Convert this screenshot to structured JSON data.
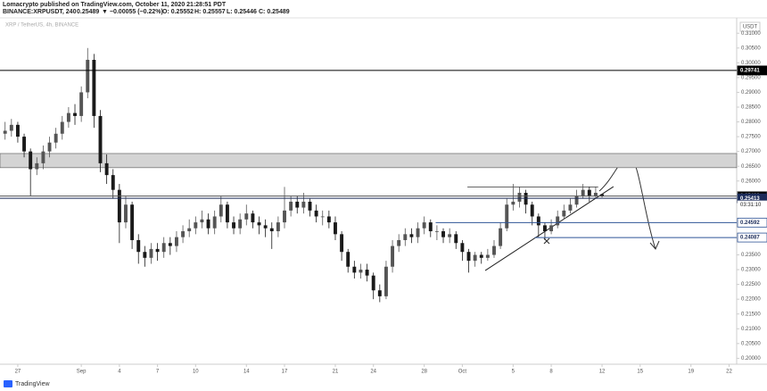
{
  "header": {
    "published": "Lomacrypto published on TradingView.com, October 11, 2020 21:28:51 PDT",
    "symbol": "BINANCE:XRPUSDT, 240",
    "last": "0.25489",
    "change": "▼ −0.00055 (−0.22%)",
    "ohlc": [
      "O: 0.25552",
      "H: 0.25557",
      "L: 0.25446",
      "C: 0.25489"
    ]
  },
  "currency": "USDT",
  "countdown": "03:31:10",
  "footer": "TradingView",
  "chart_data": {
    "type": "candlestick",
    "title": "XRP / TetherUS, 4h, BINANCE",
    "up_color": "#555555",
    "down_color": "#1a1a1a",
    "xlim": [
      -1.4,
      56.6
    ],
    "ylim": [
      0.198,
      0.3146
    ],
    "xticks": [
      {
        "value": 0,
        "label": "27"
      },
      {
        "value": 5,
        "label": "Sep"
      },
      {
        "value": 8,
        "label": "4"
      },
      {
        "value": 11,
        "label": "7"
      },
      {
        "value": 14,
        "label": "10"
      },
      {
        "value": 18,
        "label": "14"
      },
      {
        "value": 21,
        "label": "17"
      },
      {
        "value": 25,
        "label": "21"
      },
      {
        "value": 28,
        "label": "24"
      },
      {
        "value": 32,
        "label": "28"
      },
      {
        "value": 35,
        "label": "Oct"
      },
      {
        "value": 39,
        "label": "5"
      },
      {
        "value": 42,
        "label": "8"
      },
      {
        "value": 46,
        "label": "12"
      },
      {
        "value": 49,
        "label": "15"
      },
      {
        "value": 53,
        "label": "19"
      },
      {
        "value": 56,
        "label": "22"
      }
    ],
    "yticks": [
      {
        "value": 0.31,
        "label": "0.31000"
      },
      {
        "value": 0.305,
        "label": "0.30500"
      },
      {
        "value": 0.3,
        "label": "0.30000"
      },
      {
        "value": 0.295,
        "label": "0.29500"
      },
      {
        "value": 0.29,
        "label": "0.29000"
      },
      {
        "value": 0.285,
        "label": "0.28500"
      },
      {
        "value": 0.28,
        "label": "0.28000"
      },
      {
        "value": 0.275,
        "label": "0.27500"
      },
      {
        "value": 0.27,
        "label": "0.27000"
      },
      {
        "value": 0.265,
        "label": "0.26500"
      },
      {
        "value": 0.26,
        "label": "0.26000"
      },
      {
        "value": 0.235,
        "label": "0.23500"
      },
      {
        "value": 0.23,
        "label": "0.23000"
      },
      {
        "value": 0.225,
        "label": "0.22500"
      },
      {
        "value": 0.22,
        "label": "0.22000"
      },
      {
        "value": 0.215,
        "label": "0.21500"
      },
      {
        "value": 0.21,
        "label": "0.21000"
      },
      {
        "value": 0.205,
        "label": "0.20500"
      },
      {
        "value": 0.2,
        "label": "0.20000"
      }
    ],
    "x": [
      -1,
      -0.5,
      0,
      0.5,
      1,
      1.5,
      2,
      2.5,
      3,
      3.5,
      4,
      4.5,
      5,
      5.5,
      6,
      6.5,
      7,
      7.5,
      8,
      8.5,
      9,
      9.5,
      10,
      10.5,
      11,
      11.5,
      12,
      12.5,
      13,
      13.5,
      14,
      14.5,
      15,
      15.5,
      16,
      16.5,
      17,
      17.5,
      18,
      18.5,
      19,
      19.5,
      20,
      20.5,
      21,
      21.5,
      22,
      22.5,
      23,
      23.5,
      24,
      24.5,
      25,
      25.5,
      26,
      26.5,
      27,
      27.5,
      28,
      28.5,
      29,
      29.5,
      30,
      30.5,
      31,
      31.5,
      32,
      32.5,
      33,
      33.5,
      34,
      34.5,
      35,
      35.5,
      36,
      36.5,
      37,
      37.5,
      38,
      38.5,
      39,
      39.5,
      40,
      40.5,
      41,
      41.5,
      42,
      42.5,
      43,
      43.5,
      44,
      44.5,
      45,
      45.5,
      46
    ],
    "open": [
      0.276,
      0.277,
      0.279,
      0.275,
      0.27,
      0.264,
      0.266,
      0.27,
      0.273,
      0.276,
      0.28,
      0.283,
      0.282,
      0.29,
      0.301,
      0.282,
      0.266,
      0.262,
      0.257,
      0.246,
      0.252,
      0.24,
      0.236,
      0.234,
      0.237,
      0.236,
      0.239,
      0.238,
      0.241,
      0.243,
      0.244,
      0.246,
      0.247,
      0.244,
      0.248,
      0.252,
      0.246,
      0.244,
      0.247,
      0.249,
      0.246,
      0.245,
      0.244,
      0.243,
      0.246,
      0.25,
      0.253,
      0.251,
      0.253,
      0.25,
      0.248,
      0.248,
      0.246,
      0.242,
      0.236,
      0.231,
      0.229,
      0.23,
      0.228,
      0.223,
      0.221,
      0.231,
      0.238,
      0.24,
      0.242,
      0.241,
      0.244,
      0.246,
      0.243,
      0.243,
      0.241,
      0.242,
      0.239,
      0.236,
      0.233,
      0.235,
      0.234,
      0.235,
      0.238,
      0.244,
      0.252,
      0.253,
      0.256,
      0.252,
      0.248,
      0.245,
      0.243,
      0.245,
      0.248,
      0.25,
      0.252,
      0.255,
      0.257,
      0.255,
      0.25552
    ],
    "high": [
      0.28,
      0.281,
      0.28,
      0.276,
      0.271,
      0.268,
      0.272,
      0.275,
      0.278,
      0.282,
      0.285,
      0.286,
      0.292,
      0.305,
      0.303,
      0.284,
      0.269,
      0.264,
      0.259,
      0.255,
      0.253,
      0.242,
      0.238,
      0.239,
      0.239,
      0.241,
      0.241,
      0.243,
      0.245,
      0.247,
      0.248,
      0.25,
      0.249,
      0.25,
      0.255,
      0.253,
      0.248,
      0.249,
      0.252,
      0.25,
      0.248,
      0.247,
      0.246,
      0.248,
      0.258,
      0.255,
      0.255,
      0.256,
      0.254,
      0.252,
      0.25,
      0.25,
      0.248,
      0.243,
      0.237,
      0.233,
      0.232,
      0.232,
      0.229,
      0.225,
      0.233,
      0.24,
      0.242,
      0.244,
      0.244,
      0.246,
      0.248,
      0.247,
      0.245,
      0.244,
      0.244,
      0.243,
      0.24,
      0.237,
      0.236,
      0.236,
      0.237,
      0.24,
      0.246,
      0.254,
      0.259,
      0.258,
      0.257,
      0.253,
      0.249,
      0.246,
      0.247,
      0.25,
      0.252,
      0.254,
      0.257,
      0.259,
      0.258,
      0.258,
      0.25557
    ],
    "low": [
      0.274,
      0.275,
      0.273,
      0.268,
      0.255,
      0.262,
      0.264,
      0.268,
      0.271,
      0.274,
      0.278,
      0.279,
      0.28,
      0.288,
      0.278,
      0.263,
      0.259,
      0.254,
      0.239,
      0.244,
      0.237,
      0.232,
      0.231,
      0.232,
      0.233,
      0.234,
      0.235,
      0.236,
      0.239,
      0.241,
      0.242,
      0.244,
      0.242,
      0.242,
      0.246,
      0.244,
      0.242,
      0.242,
      0.245,
      0.244,
      0.242,
      0.241,
      0.237,
      0.241,
      0.244,
      0.248,
      0.249,
      0.249,
      0.248,
      0.246,
      0.245,
      0.244,
      0.24,
      0.233,
      0.229,
      0.227,
      0.227,
      0.226,
      0.22,
      0.219,
      0.22,
      0.229,
      0.236,
      0.238,
      0.239,
      0.239,
      0.242,
      0.241,
      0.24,
      0.239,
      0.239,
      0.237,
      0.233,
      0.229,
      0.231,
      0.232,
      0.233,
      0.234,
      0.237,
      0.243,
      0.25,
      0.251,
      0.249,
      0.245,
      0.241,
      0.24,
      0.242,
      0.244,
      0.247,
      0.249,
      0.251,
      0.254,
      0.253,
      0.254,
      0.25446
    ],
    "close": [
      0.277,
      0.279,
      0.275,
      0.27,
      0.264,
      0.266,
      0.27,
      0.273,
      0.276,
      0.28,
      0.283,
      0.282,
      0.29,
      0.301,
      0.282,
      0.266,
      0.262,
      0.257,
      0.246,
      0.252,
      0.24,
      0.236,
      0.234,
      0.237,
      0.236,
      0.239,
      0.238,
      0.241,
      0.243,
      0.244,
      0.246,
      0.247,
      0.244,
      0.248,
      0.252,
      0.246,
      0.244,
      0.247,
      0.249,
      0.246,
      0.245,
      0.244,
      0.243,
      0.246,
      0.25,
      0.253,
      0.251,
      0.253,
      0.25,
      0.248,
      0.248,
      0.246,
      0.242,
      0.236,
      0.231,
      0.229,
      0.23,
      0.228,
      0.223,
      0.221,
      0.231,
      0.238,
      0.24,
      0.242,
      0.241,
      0.244,
      0.246,
      0.243,
      0.243,
      0.241,
      0.242,
      0.239,
      0.236,
      0.233,
      0.235,
      0.234,
      0.235,
      0.238,
      0.244,
      0.252,
      0.253,
      0.256,
      0.252,
      0.248,
      0.245,
      0.243,
      0.245,
      0.248,
      0.25,
      0.252,
      0.255,
      0.257,
      0.255,
      0.256,
      0.25489
    ],
    "zone": {
      "low": 0.2645,
      "high": 0.2693,
      "color": "#d4d4d4"
    },
    "levels": [
      {
        "value": 0.29741,
        "x_start": -1.4,
        "color": "#000000",
        "label_bg": "#000000",
        "label_fg": "#ffffff"
      },
      {
        "value": 0.25489,
        "x_start": -1.4,
        "color": "#555555",
        "label_bg": "#000000",
        "label_fg": "#ffffff"
      },
      {
        "value": 0.25413,
        "x_start": -1.4,
        "color": "#1c2c5a",
        "label_bg": "#1c2c5a",
        "label_fg": "#ffffff"
      },
      {
        "value": 0.24592,
        "x_start": 32.9,
        "color": "#2f5496",
        "label_bg": "#ffffff",
        "label_fg": "#1c2c5a"
      },
      {
        "value": 0.24087,
        "x_start": 40.7,
        "color": "#2f5496",
        "label_bg": "#ffffff",
        "label_fg": "#1c2c5a"
      }
    ],
    "resistance": {
      "value": 0.258,
      "x_start": 35.4,
      "x_end": 45.7,
      "color": "#333333"
    },
    "trendline": {
      "x": [
        36.8,
        46.9
      ],
      "y": [
        0.2297,
        0.2581
      ],
      "color": "#222222"
    }
  }
}
